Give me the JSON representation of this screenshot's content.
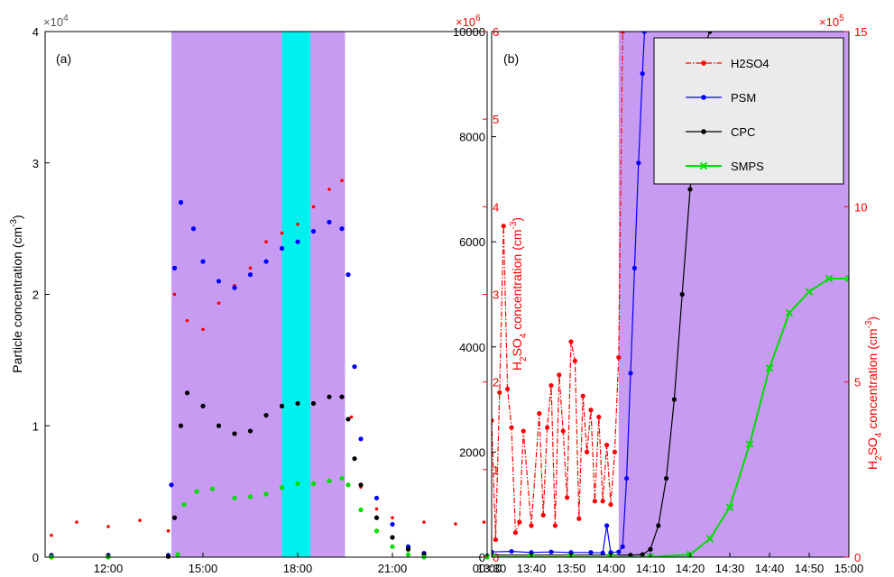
{
  "chart_data": [
    {
      "type": "scatter",
      "panel_label": "(a)",
      "ylabel_left": "Particle concentration (cm^-3)",
      "ylabel_right": "H2SO4 concentration (cm^-3)",
      "left_multiplier": "×10",
      "left_multiplier_exp": "4",
      "right_multiplier": "×10",
      "right_multiplier_exp": "6",
      "xlim_hours": [
        10.0,
        24.0
      ],
      "ylim_left": [
        0,
        40000
      ],
      "ylim_right": [
        0,
        6000000
      ],
      "x_ticks": [
        {
          "h": 12,
          "label": "12:00"
        },
        {
          "h": 15,
          "label": "15:00"
        },
        {
          "h": 18,
          "label": "18:00"
        },
        {
          "h": 21,
          "label": "21:00"
        },
        {
          "h": 24,
          "label": "00:00"
        }
      ],
      "y_ticks_left": [
        {
          "v": 0,
          "label": "0"
        },
        {
          "v": 10000,
          "label": "1"
        },
        {
          "v": 20000,
          "label": "2"
        },
        {
          "v": 30000,
          "label": "3"
        },
        {
          "v": 40000,
          "label": "4"
        }
      ],
      "y_ticks_right": [
        {
          "v": 0,
          "label": "0"
        },
        {
          "v": 1000000,
          "label": "1"
        },
        {
          "v": 2000000,
          "label": "2"
        },
        {
          "v": 3000000,
          "label": "3"
        },
        {
          "v": 4000000,
          "label": "4"
        },
        {
          "v": 5000000,
          "label": "5"
        },
        {
          "v": 6000000,
          "label": "6"
        }
      ],
      "shaded_regions": [
        {
          "from": 14.0,
          "to": 19.5,
          "color": "#c79bf2"
        },
        {
          "from": 17.5,
          "to": 18.4,
          "color": "#00f0f0"
        }
      ],
      "series": [
        {
          "marker": "dot",
          "color": "#ff0000",
          "axis": "right",
          "values": [
            [
              10.2,
              250000
            ],
            [
              11.0,
              400000
            ],
            [
              12.0,
              350000
            ],
            [
              13.0,
              420000
            ],
            [
              13.9,
              300000
            ],
            [
              14.1,
              3000000
            ],
            [
              14.5,
              2700000
            ],
            [
              15.0,
              2600000
            ],
            [
              15.5,
              2900000
            ],
            [
              16.0,
              3100000
            ],
            [
              16.5,
              3300000
            ],
            [
              17.0,
              3600000
            ],
            [
              17.5,
              3700000
            ],
            [
              18.0,
              3800000
            ],
            [
              18.5,
              4000000
            ],
            [
              19.0,
              4200000
            ],
            [
              19.4,
              4300000
            ],
            [
              19.7,
              1600000
            ],
            [
              20.0,
              800000
            ],
            [
              20.5,
              550000
            ],
            [
              21.0,
              450000
            ],
            [
              22.0,
              400000
            ],
            [
              23.0,
              380000
            ],
            [
              23.9,
              400000
            ]
          ]
        },
        {
          "marker": "dot",
          "color": "#0000ff",
          "axis": "left",
          "values": [
            [
              10.2,
              150
            ],
            [
              12.0,
              150
            ],
            [
              13.9,
              150
            ],
            [
              14.0,
              5500
            ],
            [
              14.1,
              22000
            ],
            [
              14.3,
              27000
            ],
            [
              14.7,
              25000
            ],
            [
              15.0,
              22500
            ],
            [
              15.5,
              21000
            ],
            [
              16.0,
              20500
            ],
            [
              16.5,
              21500
            ],
            [
              17.0,
              22500
            ],
            [
              17.5,
              23500
            ],
            [
              18.0,
              24000
            ],
            [
              18.5,
              24800
            ],
            [
              19.0,
              25500
            ],
            [
              19.4,
              25000
            ],
            [
              19.6,
              21500
            ],
            [
              19.8,
              14500
            ],
            [
              20.0,
              9000
            ],
            [
              20.5,
              4500
            ],
            [
              21.0,
              2500
            ],
            [
              21.5,
              800
            ],
            [
              22.0,
              300
            ],
            [
              24.0,
              100
            ]
          ]
        },
        {
          "marker": "dot",
          "color": "#000000",
          "axis": "left",
          "values": [
            [
              10.2,
              50
            ],
            [
              12.0,
              50
            ],
            [
              13.9,
              50
            ],
            [
              14.1,
              3000
            ],
            [
              14.3,
              10000
            ],
            [
              14.5,
              12500
            ],
            [
              15.0,
              11500
            ],
            [
              15.5,
              10000
            ],
            [
              16.0,
              9400
            ],
            [
              16.5,
              9600
            ],
            [
              17.0,
              10800
            ],
            [
              17.5,
              11500
            ],
            [
              18.0,
              11700
            ],
            [
              18.5,
              11700
            ],
            [
              19.0,
              12200
            ],
            [
              19.4,
              12200
            ],
            [
              19.6,
              10500
            ],
            [
              19.8,
              7500
            ],
            [
              20.0,
              5500
            ],
            [
              20.5,
              3000
            ],
            [
              21.0,
              1500
            ],
            [
              21.5,
              600
            ],
            [
              22.0,
              200
            ],
            [
              24.0,
              80
            ]
          ]
        },
        {
          "marker": "dot",
          "color": "#00dd00",
          "axis": "left",
          "values": [
            [
              10.2,
              0
            ],
            [
              12.0,
              0
            ],
            [
              14.2,
              200
            ],
            [
              14.4,
              4000
            ],
            [
              14.8,
              5000
            ],
            [
              15.3,
              5200
            ],
            [
              16.0,
              4500
            ],
            [
              16.5,
              4600
            ],
            [
              17.0,
              4800
            ],
            [
              17.5,
              5300
            ],
            [
              18.0,
              5600
            ],
            [
              18.5,
              5600
            ],
            [
              19.0,
              5800
            ],
            [
              19.4,
              6000
            ],
            [
              19.6,
              5500
            ],
            [
              20.0,
              3600
            ],
            [
              20.5,
              2000
            ],
            [
              21.0,
              800
            ],
            [
              21.5,
              200
            ],
            [
              22.0,
              0
            ],
            [
              24.0,
              0
            ]
          ]
        }
      ]
    },
    {
      "type": "line",
      "panel_label": "(b)",
      "ylabel_right": "H2SO4 concentration (cm^-3)",
      "right_multiplier": "×10",
      "right_multiplier_exp": "5",
      "xlim_minutes": [
        810,
        900
      ],
      "ylim_left": [
        0,
        10000
      ],
      "ylim_right": [
        0,
        1500000
      ],
      "x_ticks": [
        {
          "m": 810,
          "label": "13:30"
        },
        {
          "m": 820,
          "label": "13:40"
        },
        {
          "m": 830,
          "label": "13:50"
        },
        {
          "m": 840,
          "label": "14:00"
        },
        {
          "m": 850,
          "label": "14:10"
        },
        {
          "m": 860,
          "label": "14:20"
        },
        {
          "m": 870,
          "label": "14:30"
        },
        {
          "m": 880,
          "label": "14:40"
        },
        {
          "m": 890,
          "label": "14:50"
        },
        {
          "m": 900,
          "label": "15:00"
        }
      ],
      "y_ticks_left": [
        {
          "v": 0,
          "label": "0"
        },
        {
          "v": 2000,
          "label": "2000"
        },
        {
          "v": 4000,
          "label": "4000"
        },
        {
          "v": 6000,
          "label": "6000"
        },
        {
          "v": 8000,
          "label": "8000"
        },
        {
          "v": 10000,
          "label": "10000"
        }
      ],
      "y_ticks_right": [
        {
          "v": 0,
          "label": "0"
        },
        {
          "v": 500000,
          "label": "5"
        },
        {
          "v": 1000000,
          "label": "10"
        },
        {
          "v": 1500000,
          "label": "15"
        }
      ],
      "shaded_regions": [
        {
          "from": 842,
          "to": 900,
          "color": "#c79bf2"
        }
      ],
      "legend": {
        "placement": "top-right",
        "items": [
          {
            "label": "H2SO4",
            "color": "#ff0000",
            "style": "dashdot"
          },
          {
            "label": "PSM",
            "color": "#0000ff",
            "style": "solid"
          },
          {
            "label": "CPC",
            "color": "#000000",
            "style": "solid"
          },
          {
            "label": "SMPS",
            "color": "#00dd00",
            "style": "solid-x"
          }
        ]
      },
      "series": [
        {
          "name": "H2SO4",
          "color": "#ff0000",
          "axis": "right",
          "style": "dashdot",
          "values": [
            [
              810,
              390000
            ],
            [
              811,
              50000
            ],
            [
              812,
              470000
            ],
            [
              813,
              945000
            ],
            [
              814,
              480000
            ],
            [
              815,
              370000
            ],
            [
              816,
              70000
            ],
            [
              817,
              100000
            ],
            [
              818,
              360000
            ],
            [
              820,
              90000
            ],
            [
              822,
              410000
            ],
            [
              823,
              120000
            ],
            [
              824,
              370000
            ],
            [
              825,
              490000
            ],
            [
              826,
              90000
            ],
            [
              827,
              520000
            ],
            [
              828,
              360000
            ],
            [
              829,
              170000
            ],
            [
              830,
              615000
            ],
            [
              831,
              560000
            ],
            [
              832,
              110000
            ],
            [
              833,
              460000
            ],
            [
              834,
              300000
            ],
            [
              835,
              420000
            ],
            [
              836,
              160000
            ],
            [
              837,
              400000
            ],
            [
              838,
              160000
            ],
            [
              839,
              320000
            ],
            [
              840,
              150000
            ],
            [
              841,
              300000
            ],
            [
              842,
              570000
            ],
            [
              843,
              1500000
            ]
          ]
        },
        {
          "name": "PSM",
          "color": "#0000ff",
          "axis": "left",
          "values": [
            [
              810,
              100
            ],
            [
              815,
              110
            ],
            [
              820,
              90
            ],
            [
              825,
              100
            ],
            [
              830,
              90
            ],
            [
              835,
              90
            ],
            [
              838,
              80
            ],
            [
              839,
              600
            ],
            [
              840,
              90
            ],
            [
              842,
              100
            ],
            [
              843,
              200
            ],
            [
              844,
              1500
            ],
            [
              845,
              3500
            ],
            [
              846,
              5500
            ],
            [
              847,
              7500
            ],
            [
              848,
              9200
            ],
            [
              848.5,
              10000
            ]
          ]
        },
        {
          "name": "CPC",
          "color": "#000000",
          "axis": "left",
          "values": [
            [
              810,
              40
            ],
            [
              820,
              40
            ],
            [
              830,
              40
            ],
            [
              840,
              40
            ],
            [
              845,
              40
            ],
            [
              848,
              50
            ],
            [
              850,
              150
            ],
            [
              852,
              600
            ],
            [
              854,
              1500
            ],
            [
              856,
              3000
            ],
            [
              858,
              5000
            ],
            [
              860,
              7000
            ],
            [
              862,
              8500
            ],
            [
              863,
              9400
            ],
            [
              864,
              9800
            ],
            [
              865,
              10000
            ]
          ]
        },
        {
          "name": "SMPS",
          "color": "#00dd00",
          "axis": "left",
          "values": [
            [
              810,
              0
            ],
            [
              820,
              0
            ],
            [
              830,
              0
            ],
            [
              840,
              0
            ],
            [
              850,
              0
            ],
            [
              860,
              50
            ],
            [
              865,
              350
            ],
            [
              870,
              950
            ],
            [
              875,
              2150
            ],
            [
              880,
              3600
            ],
            [
              885,
              4650
            ],
            [
              890,
              5050
            ],
            [
              895,
              5300
            ],
            [
              900,
              5300
            ]
          ]
        }
      ]
    }
  ]
}
